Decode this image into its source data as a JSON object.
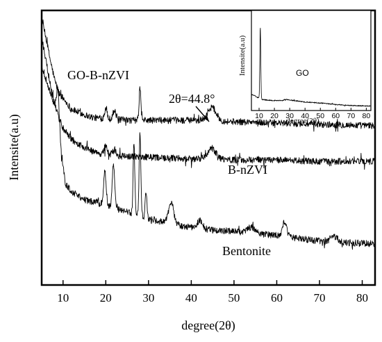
{
  "chart_data": [
    {
      "type": "line",
      "title": "",
      "xlabel": "degree(2θ)",
      "ylabel": "Intensite(a.u)",
      "xlim": [
        5,
        83
      ],
      "ylim": [
        0,
        100
      ],
      "x_ticks": [
        10,
        20,
        30,
        40,
        50,
        60,
        70,
        80
      ],
      "y_ticks_shown": false,
      "grid": false,
      "legend": "none (series labelled inline)",
      "series": [
        {
          "name": "GO-B-nZVI",
          "baseline": [
            [
              5,
              97
            ],
            [
              6,
              90
            ],
            [
              7,
              82
            ],
            [
              8,
              75
            ],
            [
              9,
              70
            ],
            [
              10,
              68
            ],
            [
              12,
              64
            ],
            [
              15,
              62
            ],
            [
              17,
              61
            ],
            [
              20,
              60.5
            ],
            [
              25,
              60
            ],
            [
              30,
              60
            ],
            [
              35,
              60
            ],
            [
              40,
              60
            ],
            [
              50,
              59.5
            ],
            [
              60,
              59
            ],
            [
              70,
              58.5
            ],
            [
              83,
              58
            ]
          ],
          "peaks": [
            [
              20,
              4,
              0.3
            ],
            [
              22,
              3,
              0.4
            ],
            [
              28,
              12,
              0.2
            ],
            [
              44.8,
              5,
              1.0
            ]
          ]
        },
        {
          "name": "B-nZVI",
          "baseline": [
            [
              5,
              90
            ],
            [
              6,
              82
            ],
            [
              7,
              73
            ],
            [
              8,
              66
            ],
            [
              9,
              61
            ],
            [
              10,
              57
            ],
            [
              12,
              53
            ],
            [
              15,
              50
            ],
            [
              18,
              48
            ],
            [
              22,
              47
            ],
            [
              30,
              46.5
            ],
            [
              40,
              46
            ],
            [
              50,
              45.5
            ],
            [
              60,
              45.5
            ],
            [
              70,
              45
            ],
            [
              83,
              45
            ]
          ],
          "peaks": [
            [
              20,
              3,
              0.4
            ],
            [
              22,
              2,
              0.4
            ],
            [
              44.8,
              4,
              1.0
            ]
          ]
        },
        {
          "name": "Bentonite",
          "baseline": [
            [
              5,
              80
            ],
            [
              6,
              75
            ],
            [
              7,
              70
            ],
            [
              8,
              66
            ],
            [
              8.8,
              64
            ],
            [
              9.5,
              50
            ],
            [
              10.5,
              37
            ],
            [
              12,
              34
            ],
            [
              15,
              31
            ],
            [
              18,
              30
            ],
            [
              22,
              28
            ],
            [
              26,
              26
            ],
            [
              30,
              24
            ],
            [
              33,
              23
            ],
            [
              36,
              22
            ],
            [
              40,
              21
            ],
            [
              45,
              20
            ],
            [
              50,
              19.5
            ],
            [
              55,
              19
            ],
            [
              60,
              18
            ],
            [
              65,
              17
            ],
            [
              70,
              16
            ],
            [
              75,
              15.5
            ],
            [
              83,
              15
            ]
          ],
          "peaks": [
            [
              8.8,
              8,
              0.3
            ],
            [
              19.8,
              12,
              0.3
            ],
            [
              21.8,
              15,
              0.3
            ],
            [
              26.6,
              26,
              0.2
            ],
            [
              28,
              30,
              0.2
            ],
            [
              29.4,
              10,
              0.2
            ],
            [
              35.3,
              8,
              0.6
            ],
            [
              42,
              3,
              0.6
            ],
            [
              54,
              2,
              0.8
            ],
            [
              61.8,
              5,
              0.5
            ],
            [
              73.5,
              2,
              0.8
            ]
          ]
        }
      ],
      "annotations": [
        {
          "text": "2θ=44.8°",
          "x": 44.8
        }
      ]
    },
    {
      "type": "line",
      "title": "",
      "xlabel": "degree(2θ)",
      "ylabel": "Intensite(a.u)",
      "xlim": [
        5,
        83
      ],
      "ylim": [
        0,
        100
      ],
      "x_ticks": [
        10,
        20,
        30,
        40,
        50,
        60,
        70,
        80
      ],
      "grid": false,
      "legend": "none (series labelled inline)",
      "series": [
        {
          "name": "GO",
          "baseline": [
            [
              5,
              16
            ],
            [
              7,
              15
            ],
            [
              9,
              13
            ],
            [
              10.5,
              12
            ],
            [
              12,
              11
            ],
            [
              15,
              10.5
            ],
            [
              20,
              10
            ],
            [
              25,
              10
            ],
            [
              28,
              11
            ],
            [
              30,
              10.5
            ],
            [
              35,
              9.5
            ],
            [
              40,
              8.5
            ],
            [
              50,
              7.5
            ],
            [
              60,
              6
            ],
            [
              70,
              5
            ],
            [
              83,
              4.5
            ]
          ],
          "peaks": [
            [
              10.8,
              72,
              0.3
            ]
          ]
        }
      ]
    }
  ]
}
